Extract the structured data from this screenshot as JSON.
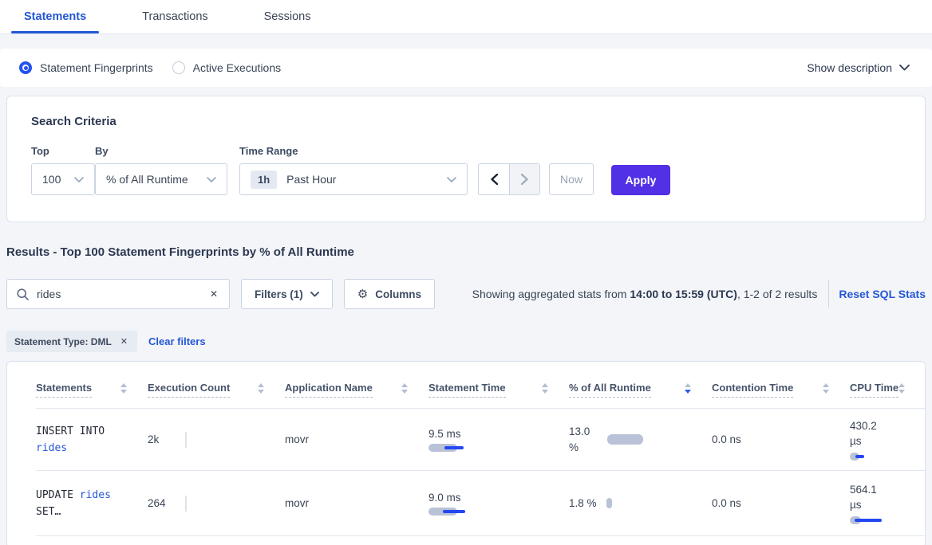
{
  "colors": {
    "accent_blue": "#2457d6",
    "apply_purple": "#5230e5",
    "bar_gray": "#b9c2d6",
    "bar_blue": "#2447f2"
  },
  "tabs": {
    "items": [
      {
        "label": "Statements",
        "active": true
      },
      {
        "label": "Transactions",
        "active": false
      },
      {
        "label": "Sessions",
        "active": false
      }
    ]
  },
  "view_toggle": {
    "options": [
      {
        "label": "Statement Fingerprints",
        "selected": true
      },
      {
        "label": "Active Executions",
        "selected": false
      }
    ],
    "show_description_label": "Show description"
  },
  "search_criteria": {
    "title": "Search Criteria",
    "top_label": "Top",
    "top_value": "100",
    "by_label": "By",
    "by_value": "% of All Runtime",
    "time_range_label": "Time Range",
    "time_badge": "1h",
    "time_value": "Past Hour",
    "now_label": "Now",
    "apply_label": "Apply"
  },
  "results_bar": {
    "heading": "Results - Top 100 Statement Fingerprints by % of All Runtime",
    "search_value": "rides",
    "filters_label": "Filters (1)",
    "columns_label": "Columns",
    "summary_prefix": "Showing aggregated stats from ",
    "summary_bold": "14:00 to 15:59 (UTC)",
    "summary_suffix": ", 1-2 of 2 results",
    "reset_label": "Reset SQL Stats",
    "filter_pill": "Statement Type: DML",
    "clear_filters_label": "Clear filters"
  },
  "table": {
    "columns": [
      {
        "label": "Statements",
        "sort": "none"
      },
      {
        "label": "Execution Count",
        "sort": "none"
      },
      {
        "label": "Application Name",
        "sort": "none"
      },
      {
        "label": "Statement Time",
        "sort": "none"
      },
      {
        "label": "% of All Runtime",
        "sort": "desc"
      },
      {
        "label": "Contention Time",
        "sort": "none"
      },
      {
        "label": "CPU Time",
        "sort": "none"
      }
    ],
    "rows": [
      {
        "sql_line1_text": "INSERT INTO",
        "sql_line1_link": "",
        "sql_line2_link": "rides",
        "sql_line2_text": "",
        "execution_count": "2k",
        "application_name": "movr",
        "statement_time": "9.5 ms",
        "statement_time_bar": {
          "g": 36,
          "gh": 10,
          "bl": 20,
          "bw": 24
        },
        "runtime": "13.0 %",
        "runtime_bar": {
          "g": 45,
          "gh": 13,
          "bw": 0
        },
        "contention_time": "0.0 ns",
        "cpu_time": "430.2 µs",
        "cpu_time_bar": {
          "g": 12,
          "gh": 10,
          "bl": 7,
          "bw": 11
        }
      },
      {
        "sql_line1_text": "UPDATE",
        "sql_line1_link": "rides",
        "sql_line2_link": "",
        "sql_line2_text": "SET…",
        "execution_count": "264",
        "application_name": "movr",
        "statement_time": "9.0 ms",
        "statement_time_bar": {
          "g": 36,
          "gh": 10,
          "bl": 18,
          "bw": 28
        },
        "runtime": "1.8 %",
        "runtime_bar": {
          "g": 7,
          "gh": 13,
          "bw": 0
        },
        "contention_time": "0.0 ns",
        "cpu_time": "564.1 µs",
        "cpu_time_bar": {
          "g": 14,
          "gh": 10,
          "bl": 6,
          "bw": 34
        }
      }
    ]
  }
}
